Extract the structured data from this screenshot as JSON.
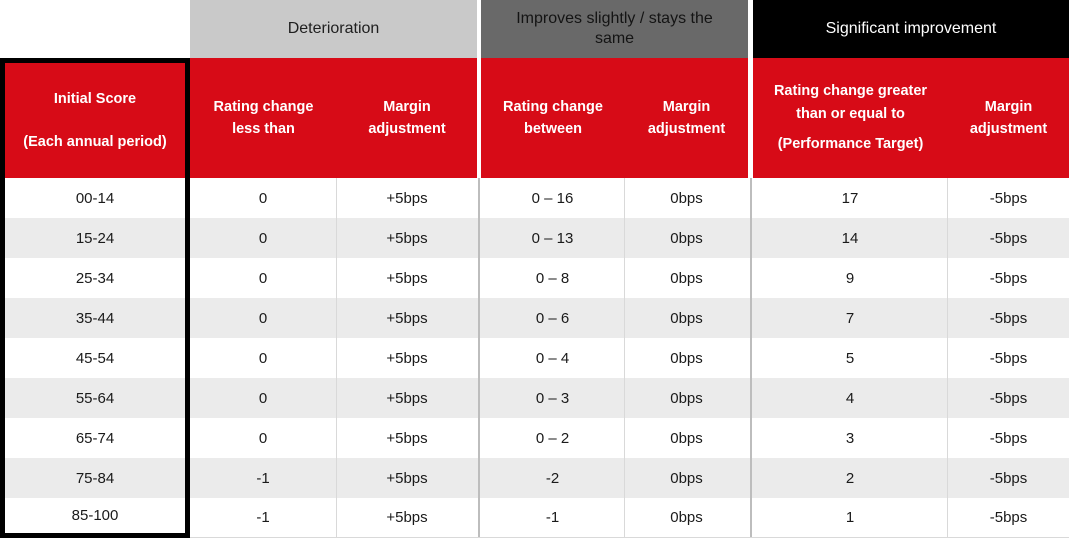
{
  "table": {
    "colors": {
      "red": "#D70B17",
      "group1_bg": "#C9C9C9",
      "group2_bg": "#696969",
      "group3_bg": "#000000",
      "row_alt": "#EBEBEB",
      "thin_divider": "#D9D9D9",
      "group_divider": "#BDBDBD",
      "header_text": "#FFFFFF",
      "body_text": "#1A1A1A"
    },
    "groups": [
      {
        "label": "Deterioration"
      },
      {
        "label": "Improves slightly / stays the same"
      },
      {
        "label": "Significant improvement"
      }
    ],
    "header": {
      "initial_score_line1": "Initial Score",
      "initial_score_line2": "(Each annual period)",
      "deterioration_rating": "Rating change less than",
      "deterioration_margin": "Margin adjustment",
      "improves_rating": "Rating change between",
      "improves_margin": "Margin adjustment",
      "significant_rating_line1": "Rating change greater than or equal to",
      "significant_rating_line2": "(Performance Target)",
      "significant_margin": "Margin adjustment"
    },
    "rows": [
      [
        "00-14",
        "0",
        "+5bps",
        "0 – 16",
        "0bps",
        "17",
        "-5bps"
      ],
      [
        "15-24",
        "0",
        "+5bps",
        "0 – 13",
        "0bps",
        "14",
        "-5bps"
      ],
      [
        "25-34",
        "0",
        "+5bps",
        "0 – 8",
        "0bps",
        "9",
        "-5bps"
      ],
      [
        "35-44",
        "0",
        "+5bps",
        "0 – 6",
        "0bps",
        "7",
        "-5bps"
      ],
      [
        "45-54",
        "0",
        "+5bps",
        "0 – 4",
        "0bps",
        "5",
        "-5bps"
      ],
      [
        "55-64",
        "0",
        "+5bps",
        "0 – 3",
        "0bps",
        "4",
        "-5bps"
      ],
      [
        "65-74",
        "0",
        "+5bps",
        "0 – 2",
        "0bps",
        "3",
        "-5bps"
      ],
      [
        "75-84",
        "-1",
        "+5bps",
        "-2",
        "0bps",
        "2",
        "-5bps"
      ],
      [
        "85-100",
        "-1",
        "+5bps",
        "-1",
        "0bps",
        "1",
        "-5bps"
      ]
    ]
  }
}
